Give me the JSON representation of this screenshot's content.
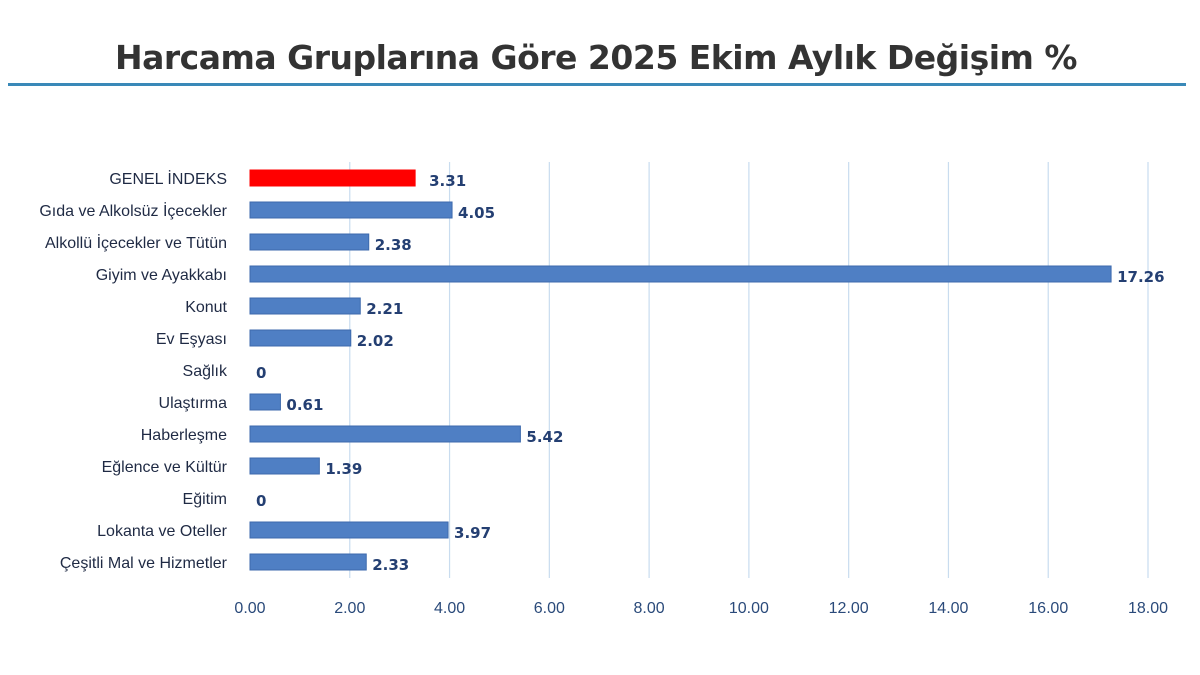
{
  "chart_data": {
    "type": "bar",
    "orientation": "horizontal",
    "title": "Harcama Gruplarına Göre 2025 Ekim Aylık Değişim %",
    "categories": [
      "GENEL İNDEKS",
      "Gıda ve Alkolsüz İçecekler",
      "Alkollü İçecekler ve Tütün",
      "Giyim ve Ayakkabı",
      "Konut",
      "Ev Eşyası",
      "Sağlık",
      "Ulaştırma",
      "Haberleşme",
      "Eğlence ve Kültür",
      "Eğitim",
      "Lokanta ve Oteller",
      "Çeşitli Mal ve Hizmetler"
    ],
    "values": [
      3.31,
      4.05,
      2.38,
      17.26,
      2.21,
      2.02,
      0,
      0.61,
      5.42,
      1.39,
      0,
      3.97,
      2.33
    ],
    "value_labels": [
      "3.31",
      "4.05",
      "2.38",
      "17.26",
      "2.21",
      "2.02",
      "0",
      "0.61",
      "5.42",
      "1.39",
      "0",
      "3.97",
      "2.33"
    ],
    "xlim": [
      0,
      18
    ],
    "xticks": [
      0,
      2,
      4,
      6,
      8,
      10,
      12,
      14,
      16,
      18
    ],
    "xtick_labels": [
      "0.00",
      "2.00",
      "4.00",
      "6.00",
      "8.00",
      "10.00",
      "12.00",
      "14.00",
      "16.00",
      "18.00"
    ],
    "xlabel": "",
    "ylabel": "",
    "grid": true,
    "legend": "none",
    "highlight_index": 0,
    "colors": {
      "bar": "#4f7fc4",
      "bar_edge": "#3d6aad",
      "highlight_bar": "#ff0000",
      "highlight_label": "#e31a1c",
      "value_label": "#243f72",
      "grid": "#c9dcef",
      "title_rule": "#3a89b8"
    }
  }
}
